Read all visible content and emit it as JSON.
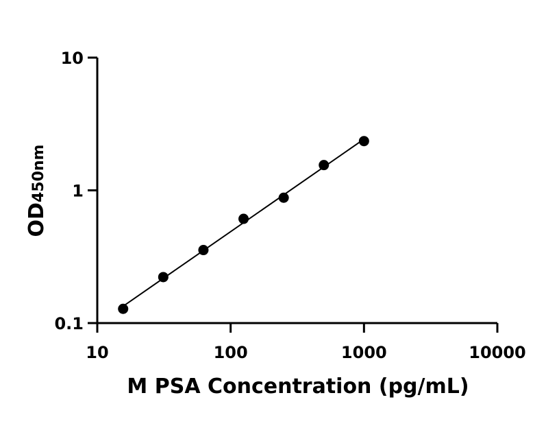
{
  "chart_data": {
    "type": "scatter",
    "title": "",
    "xlabel": "M PSA Concentration (pg/mL)",
    "ylabel_main": "OD",
    "ylabel_sub": "450nm",
    "x_scale": "log",
    "y_scale": "log",
    "xlim": [
      10,
      10000
    ],
    "ylim": [
      0.1,
      10
    ],
    "x_ticks": [
      {
        "value": 10,
        "label": "10"
      },
      {
        "value": 100,
        "label": "100"
      },
      {
        "value": 1000,
        "label": "1000"
      },
      {
        "value": 10000,
        "label": "10000"
      }
    ],
    "y_ticks": [
      {
        "value": 0.1,
        "label": "0.1"
      },
      {
        "value": 1,
        "label": "1"
      },
      {
        "value": 10,
        "label": "10"
      }
    ],
    "grid": false,
    "series": [
      {
        "x": [
          15.625,
          31.25,
          62.5,
          125,
          250,
          500,
          1000
        ],
        "y": [
          0.128,
          0.222,
          0.355,
          0.61,
          0.88,
          1.55,
          2.35
        ],
        "color": "#000000",
        "marker": "circle",
        "fit_line": true
      }
    ]
  }
}
